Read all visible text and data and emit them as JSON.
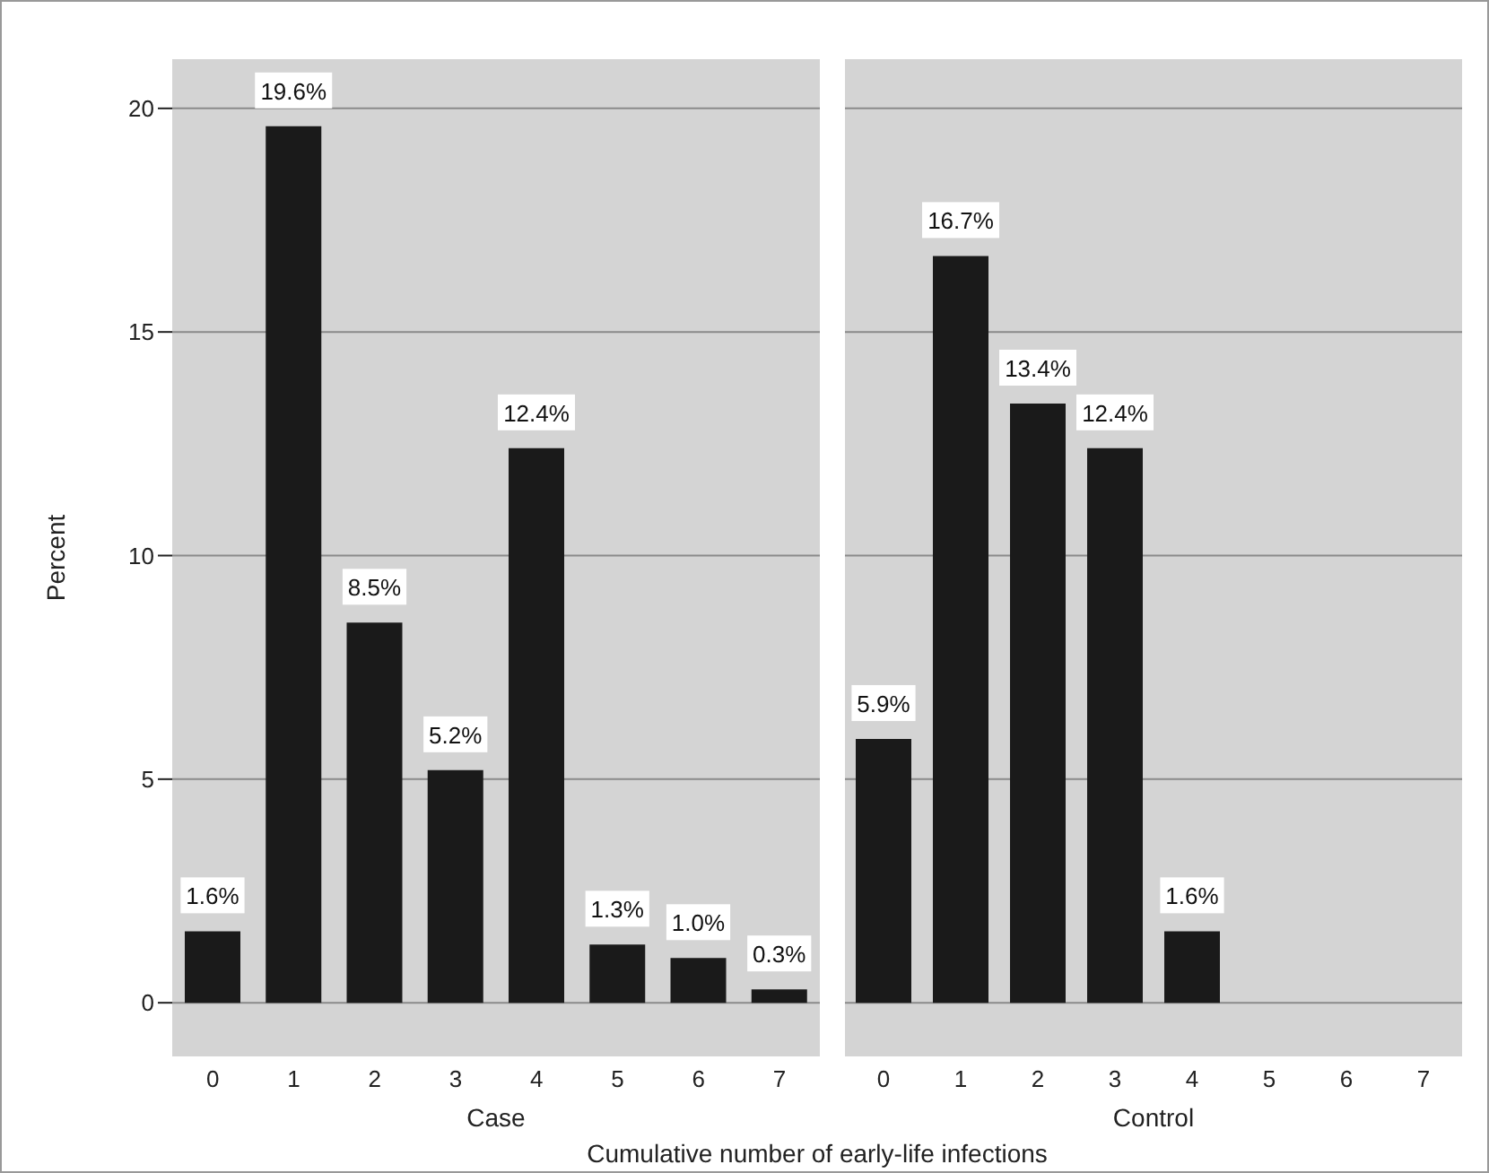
{
  "chart_data": [
    {
      "type": "bar",
      "ylabel": "Percent",
      "xlabel": "Case",
      "categories": [
        "0",
        "1",
        "2",
        "3",
        "4",
        "5",
        "6",
        "7"
      ],
      "ylim": [
        -1.2,
        21.1
      ],
      "yticks": [
        0,
        5,
        10,
        15,
        20
      ],
      "grid": "y",
      "color": "#1a1a1a",
      "values": [
        1.6,
        19.6,
        8.5,
        5.2,
        12.4,
        1.3,
        1.0,
        0.3
      ],
      "value_labels": [
        "1.6%",
        "19.6%",
        "8.5%",
        "5.2%",
        "12.4%",
        "1.3%",
        "1.0%",
        "0.3%"
      ],
      "annotations": [
        "Cumulative number of early-life infections"
      ]
    },
    {
      "type": "bar",
      "xlabel": "Control",
      "categories": [
        "0",
        "1",
        "2",
        "3",
        "4",
        "5",
        "6",
        "7"
      ],
      "ylim": [
        -1.2,
        21.1
      ],
      "yticks": [
        0,
        5,
        10,
        15,
        20
      ],
      "grid": "y",
      "tick_labels": "x",
      "color": "#1a1a1a",
      "values": [
        5.9,
        16.7,
        13.4,
        12.4,
        1.6,
        0,
        0,
        0
      ],
      "value_labels": [
        "5.9%",
        "16.7%",
        "13.4%",
        "12.4%",
        "1.6%",
        null,
        null,
        null
      ]
    }
  ]
}
